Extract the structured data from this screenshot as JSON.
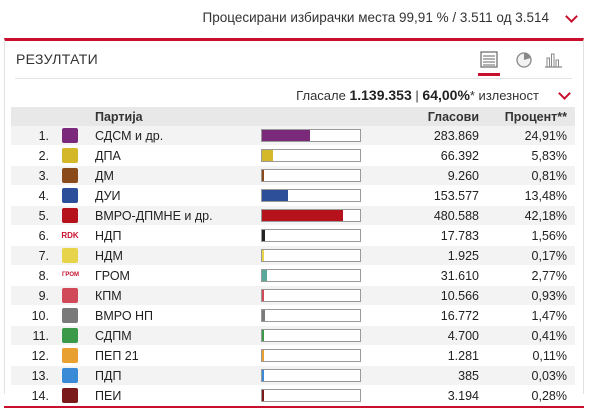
{
  "header": {
    "processed_text": "Процесирани избирачки места 99,91 % / 3.511 од 3.514"
  },
  "panel": {
    "title": "РЕЗУЛТАТИ",
    "views": [
      "list-icon",
      "pie-chart-icon",
      "bar-chart-icon"
    ],
    "turnout_label": "Гласале",
    "turnout_votes": "1.139.353",
    "turnout_sep": "|",
    "turnout_pct": "64,00%",
    "turnout_suffix": "* излезност"
  },
  "table": {
    "headers": [
      "Партија",
      "Гласови",
      "Процент**"
    ],
    "rows": [
      {
        "rank": "1.",
        "party": "СДСМ и др.",
        "votes": "283.869",
        "pct": "24,91%",
        "share": 24.91,
        "color": "#7b2a7b"
      },
      {
        "rank": "2.",
        "party": "ДПА",
        "votes": "66.392",
        "pct": "5,83%",
        "share": 5.83,
        "color": "#d4b82a"
      },
      {
        "rank": "3.",
        "party": "ДМ",
        "votes": "9.260",
        "pct": "0,81%",
        "share": 0.81,
        "color": "#8b4a1a"
      },
      {
        "rank": "4.",
        "party": "ДУИ",
        "votes": "153.577",
        "pct": "13,48%",
        "share": 13.48,
        "color": "#2d4f9a"
      },
      {
        "rank": "5.",
        "party": "ВМРО-ДПМНЕ и др.",
        "votes": "480.588",
        "pct": "42,18%",
        "share": 42.18,
        "color": "#b5121b"
      },
      {
        "rank": "6.",
        "party": "НДП",
        "votes": "17.783",
        "pct": "1,56%",
        "share": 1.56,
        "color": "#222222"
      },
      {
        "rank": "7.",
        "party": "НДМ",
        "votes": "1.925",
        "pct": "0,17%",
        "share": 0.17,
        "color": "#e8d44a"
      },
      {
        "rank": "8.",
        "party": "ГРОМ",
        "votes": "31.610",
        "pct": "2,77%",
        "share": 2.77,
        "color": "#5aa89a"
      },
      {
        "rank": "9.",
        "party": "КПМ",
        "votes": "10.566",
        "pct": "0,93%",
        "share": 0.93,
        "color": "#d04a5a"
      },
      {
        "rank": "10.",
        "party": "ВМРО НП",
        "votes": "16.772",
        "pct": "1,47%",
        "share": 1.47,
        "color": "#7a7a7a"
      },
      {
        "rank": "11.",
        "party": "СДПМ",
        "votes": "4.700",
        "pct": "0,41%",
        "share": 0.41,
        "color": "#3a9a4a"
      },
      {
        "rank": "12.",
        "party": "ПЕП 21",
        "votes": "1.281",
        "pct": "0,11%",
        "share": 0.11,
        "color": "#e8a030"
      },
      {
        "rank": "13.",
        "party": "ПДП",
        "votes": "385",
        "pct": "0,03%",
        "share": 0.03,
        "color": "#3a8ad8"
      },
      {
        "rank": "14.",
        "party": "ПЕИ",
        "votes": "3.194",
        "pct": "0,28%",
        "share": 0.28,
        "color": "#7a1a1a"
      }
    ]
  },
  "logo_text": {
    "ndp": "RDK",
    "grom": "ГРОМ"
  }
}
